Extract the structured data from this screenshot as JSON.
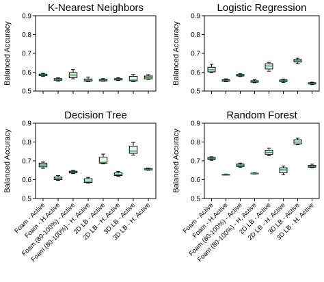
{
  "chart_data": [
    {
      "type": "box",
      "title": "K-Nearest Neighbors",
      "ylabel": "Balanced Accuracy",
      "ylim": [
        0.5,
        0.9
      ],
      "yticks": [
        "0.5",
        "0.6",
        "0.7",
        "0.8",
        "0.9"
      ],
      "categories": [
        "Foam - Active",
        "Foam - H.Active",
        "Foam (80-100%) - Active",
        "Foam (80-100%) - H. Active",
        "2D LB - Active",
        "2D LB - H. Active",
        "3D LB - Active",
        "3D LB - H. Active"
      ],
      "show_xticklabels": false,
      "boxes": [
        {
          "min": 0.578,
          "q1": 0.582,
          "median": 0.585,
          "q3": 0.59,
          "max": 0.594
        },
        {
          "min": 0.553,
          "q1": 0.557,
          "median": 0.56,
          "q3": 0.566,
          "max": 0.57
        },
        {
          "min": 0.565,
          "q1": 0.572,
          "median": 0.585,
          "q3": 0.598,
          "max": 0.614
        },
        {
          "min": 0.55,
          "q1": 0.553,
          "median": 0.558,
          "q3": 0.564,
          "max": 0.574
        },
        {
          "min": 0.552,
          "q1": 0.554,
          "median": 0.558,
          "q3": 0.562,
          "max": 0.566
        },
        {
          "min": 0.556,
          "q1": 0.559,
          "median": 0.562,
          "q3": 0.566,
          "max": 0.57
        },
        {
          "min": 0.55,
          "q1": 0.554,
          "median": 0.558,
          "q3": 0.578,
          "max": 0.588
        },
        {
          "min": 0.562,
          "q1": 0.565,
          "median": 0.572,
          "q3": 0.58,
          "max": 0.587
        }
      ]
    },
    {
      "type": "box",
      "title": "Logistic Regression",
      "ylabel": "Balanced Accuracy",
      "ylim": [
        0.5,
        0.9
      ],
      "yticks": [
        "0.5",
        "0.6",
        "0.7",
        "0.8",
        "0.9"
      ],
      "categories": [
        "Foam - Active",
        "Foam - H.Active",
        "Foam (80-100%) - Active",
        "Foam (80-100%) - H. Active",
        "2D LB - Active",
        "2D LB - H. Active",
        "3D LB - Active",
        "3D LB - H. Active"
      ],
      "show_xticklabels": false,
      "boxes": [
        {
          "min": 0.598,
          "q1": 0.602,
          "median": 0.613,
          "q3": 0.626,
          "max": 0.642
        },
        {
          "min": 0.549,
          "q1": 0.552,
          "median": 0.556,
          "q3": 0.56,
          "max": 0.565
        },
        {
          "min": 0.577,
          "q1": 0.58,
          "median": 0.584,
          "q3": 0.588,
          "max": 0.592
        },
        {
          "min": 0.544,
          "q1": 0.547,
          "median": 0.551,
          "q3": 0.555,
          "max": 0.56
        },
        {
          "min": 0.605,
          "q1": 0.617,
          "median": 0.633,
          "q3": 0.645,
          "max": 0.652
        },
        {
          "min": 0.546,
          "q1": 0.55,
          "median": 0.555,
          "q3": 0.559,
          "max": 0.564
        },
        {
          "min": 0.646,
          "q1": 0.654,
          "median": 0.66,
          "q3": 0.668,
          "max": 0.674
        },
        {
          "min": 0.534,
          "q1": 0.537,
          "median": 0.54,
          "q3": 0.544,
          "max": 0.547
        }
      ]
    },
    {
      "type": "box",
      "title": "Decision Tree",
      "ylabel": "Balanced Accuracy",
      "ylim": [
        0.5,
        0.9
      ],
      "yticks": [
        "0.5",
        "0.6",
        "0.7",
        "0.8",
        "0.9"
      ],
      "categories": [
        "Foam - Active",
        "Foam - H.Active",
        "Foam (80-100%) - Active",
        "Foam (80-100%) - H. Active",
        "2D LB - Active",
        "2D LB - H. Active",
        "3D LB - Active",
        "3D LB - H. Active"
      ],
      "show_xticklabels": true,
      "boxes": [
        {
          "min": 0.66,
          "q1": 0.668,
          "median": 0.678,
          "q3": 0.688,
          "max": 0.694
        },
        {
          "min": 0.596,
          "q1": 0.6,
          "median": 0.607,
          "q3": 0.614,
          "max": 0.622
        },
        {
          "min": 0.632,
          "q1": 0.636,
          "median": 0.641,
          "q3": 0.645,
          "max": 0.65
        },
        {
          "min": 0.582,
          "q1": 0.585,
          "median": 0.592,
          "q3": 0.605,
          "max": 0.612
        },
        {
          "min": 0.684,
          "q1": 0.688,
          "median": 0.692,
          "q3": 0.72,
          "max": 0.736
        },
        {
          "min": 0.618,
          "q1": 0.622,
          "median": 0.628,
          "q3": 0.636,
          "max": 0.644
        },
        {
          "min": 0.73,
          "q1": 0.74,
          "median": 0.752,
          "q3": 0.778,
          "max": 0.798
        },
        {
          "min": 0.65,
          "q1": 0.652,
          "median": 0.655,
          "q3": 0.659,
          "max": 0.662
        }
      ]
    },
    {
      "type": "box",
      "title": "Random Forest",
      "ylabel": "Balanced Accuracy",
      "ylim": [
        0.5,
        0.9
      ],
      "yticks": [
        "0.5",
        "0.6",
        "0.7",
        "0.8",
        "0.9"
      ],
      "categories": [
        "Foam - Active",
        "Foam - H.Active",
        "Foam (80-100%) - Active",
        "Foam (80-100%) - H. Active",
        "2D LB - Active",
        "2D LB - H. Active",
        "3D LB - Active",
        "3D LB - H. Active"
      ],
      "show_xticklabels": true,
      "boxes": [
        {
          "min": 0.703,
          "q1": 0.707,
          "median": 0.712,
          "q3": 0.718,
          "max": 0.722
        },
        {
          "min": 0.625,
          "q1": 0.626,
          "median": 0.627,
          "q3": 0.628,
          "max": 0.63
        },
        {
          "min": 0.666,
          "q1": 0.67,
          "median": 0.677,
          "q3": 0.683,
          "max": 0.688
        },
        {
          "min": 0.63,
          "q1": 0.631,
          "median": 0.633,
          "q3": 0.635,
          "max": 0.637
        },
        {
          "min": 0.728,
          "q1": 0.735,
          "median": 0.745,
          "q3": 0.756,
          "max": 0.768
        },
        {
          "min": 0.626,
          "q1": 0.637,
          "median": 0.652,
          "q3": 0.663,
          "max": 0.672
        },
        {
          "min": 0.786,
          "q1": 0.79,
          "median": 0.8,
          "q3": 0.812,
          "max": 0.82
        },
        {
          "min": 0.664,
          "q1": 0.666,
          "median": 0.67,
          "q3": 0.676,
          "max": 0.682
        }
      ]
    }
  ],
  "colors": {
    "box_fill": "#eaf5ee",
    "median_line": "#2e8b57",
    "box_edge": "#000000",
    "axis": "#000000"
  }
}
